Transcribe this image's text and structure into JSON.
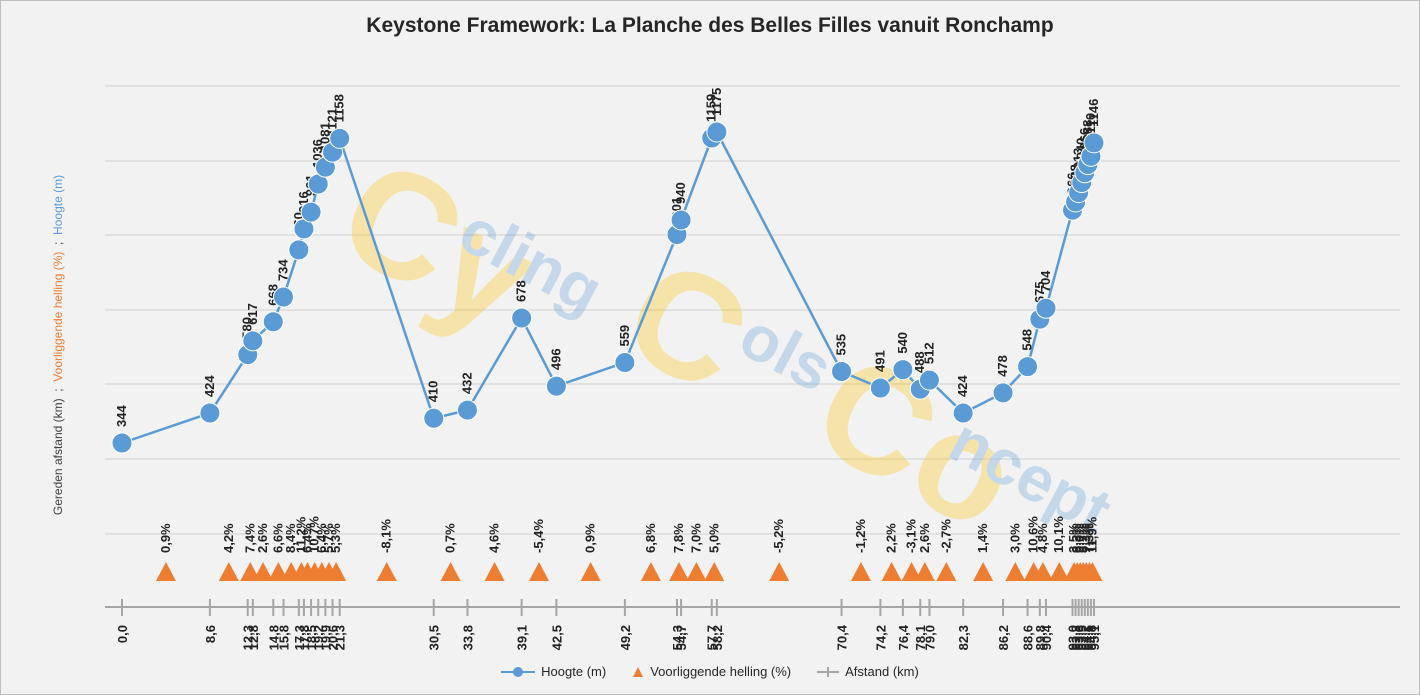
{
  "chart_data": {
    "type": "line",
    "title": "Keystone Framework: La Planche des Belles Filles vanuit Ronchamp",
    "ylabel_parts": [
      {
        "text": "Gereden afstand (km)  ;  ",
        "color": "#404040"
      },
      {
        "text": "Voorliggende helling (%)",
        "color": "#ed7d31"
      },
      {
        "text": "  ;  ",
        "color": "#404040"
      },
      {
        "text": "Hoogte (m)",
        "color": "#5b9bd5"
      }
    ],
    "colors": {
      "height": "#5b9bd5",
      "gradient": "#ed7d31",
      "distance": "#a5a5a5"
    },
    "series": [
      {
        "name": "Hoogte (m)",
        "x": [
          0.0,
          8.6,
          12.3,
          12.8,
          14.8,
          15.8,
          17.3,
          17.8,
          18.5,
          19.2,
          19.9,
          20.6,
          21.3,
          30.5,
          33.8,
          39.1,
          42.5,
          49.2,
          54.3,
          54.7,
          57.7,
          58.2,
          70.4,
          74.2,
          76.4,
          78.1,
          79.0,
          82.3,
          86.2,
          88.6,
          89.8,
          90.4,
          93.0,
          93.3,
          93.6,
          93.9,
          94.2,
          94.5,
          94.8,
          95.1
        ],
        "values": [
          344,
          424,
          580,
          617,
          668,
          734,
          860,
          916,
          961,
          1036,
          1081,
          1121,
          1158,
          410,
          432,
          678,
          496,
          559,
          901,
          940,
          1159,
          1175,
          535,
          491,
          540,
          488,
          512,
          424,
          478,
          548,
          675,
          704,
          966,
          988,
          1013,
          1040,
          1066,
          1088,
          1110,
          1146
        ],
        "labels": [
          "344",
          "424",
          "580",
          "617",
          "668",
          "734",
          "860",
          "916",
          "961",
          "1036",
          "1081",
          "1121",
          "1158",
          "410",
          "432",
          "678",
          "496",
          "559",
          "901",
          "940",
          "1159",
          "1175",
          "535",
          "491",
          "540",
          "488",
          "512",
          "424",
          "478",
          "548",
          "675",
          "704",
          "966",
          "988",
          "1013",
          "1040",
          "1066",
          "1088",
          "1110",
          "1146"
        ]
      },
      {
        "name": "Voorliggende helling (%)",
        "x": [
          4.3,
          10.45,
          12.55,
          13.8,
          15.3,
          16.55,
          17.55,
          18.15,
          18.85,
          19.55,
          20.25,
          20.95,
          25.9,
          32.15,
          36.45,
          40.8,
          45.85,
          51.75,
          54.5,
          56.2,
          57.95,
          64.3,
          72.3,
          75.3,
          77.25,
          78.55,
          80.65,
          84.25,
          87.4,
          89.2,
          90.1,
          91.7,
          93.15,
          93.45,
          93.75,
          94.05,
          94.35,
          94.65,
          94.95
        ],
        "values": [
          0.9,
          4.2,
          7.4,
          2.6,
          6.6,
          8.4,
          11.2,
          6.4,
          10.7,
          6.4,
          5.7,
          5.3,
          -8.1,
          0.7,
          4.6,
          -5.4,
          0.9,
          6.8,
          7.8,
          7.0,
          5.0,
          -5.2,
          -1.2,
          2.2,
          -3.1,
          2.6,
          -2.7,
          1.4,
          3.0,
          10.6,
          4.8,
          10.1,
          3.5,
          8.3,
          9.0,
          8.7,
          7.3,
          7.3,
          11.9
        ],
        "labels": [
          "0,9%",
          "4,2%",
          "7,4%",
          "2,6%",
          "6,6%",
          "8,4%",
          "11,2%",
          "6,4%",
          "10,7%",
          "6,4%",
          "5,7%",
          "5,3%",
          "-8,1%",
          "0,7%",
          "4,6%",
          "-5,4%",
          "0,9%",
          "6,8%",
          "7,8%",
          "7,0%",
          "5,0%",
          "-5,2%",
          "-1,2%",
          "2,2%",
          "-3,1%",
          "2,6%",
          "-2,7%",
          "1,4%",
          "3,0%",
          "10,6%",
          "4,8%",
          "10,1%",
          "3,5%",
          "8,3%",
          "9,0%",
          "8,7%",
          "7,3%",
          "7,3%",
          "11,9%"
        ]
      },
      {
        "name": "Afstand (km)",
        "x": [
          0.0,
          8.6,
          12.3,
          12.8,
          14.8,
          15.8,
          17.3,
          17.8,
          18.5,
          19.2,
          19.9,
          20.6,
          21.3,
          30.5,
          33.8,
          39.1,
          42.5,
          49.2,
          54.3,
          54.7,
          57.7,
          58.2,
          70.4,
          74.2,
          76.4,
          78.1,
          79.0,
          82.3,
          86.2,
          88.6,
          89.8,
          90.4,
          93.0,
          93.3,
          93.6,
          93.9,
          94.2,
          94.5,
          94.8,
          95.1
        ],
        "labels": [
          "0,0",
          "8,6",
          "12,3",
          "12,8",
          "14,8",
          "15,8",
          "17,3",
          "17,8",
          "18,5",
          "19,2",
          "19,9",
          "20,6",
          "21,3",
          "30,5",
          "33,8",
          "39,1",
          "42,5",
          "49,2",
          "54,3",
          "54,7",
          "57,7",
          "58,2",
          "70,4",
          "74,2",
          "76,4",
          "78,1",
          "79,0",
          "82,3",
          "86,2",
          "88,6",
          "89,8",
          "90,4",
          "93,0",
          "93,3",
          "93,6",
          "93,9",
          "94,2",
          "94,5",
          "94,8",
          "95,1"
        ]
      }
    ],
    "xlim": [
      0.0,
      95.1
    ],
    "grid": true,
    "legend_position": "bottom",
    "watermark": "CyclingColsConcept"
  },
  "legend": [
    {
      "label": "Hoogte (m)",
      "icon": "line-circle-marker-icon"
    },
    {
      "label": "Voorliggende helling (%)",
      "icon": "triangle-marker-icon"
    },
    {
      "label": "Afstand (km)",
      "icon": "line-tick-marker-icon"
    }
  ]
}
